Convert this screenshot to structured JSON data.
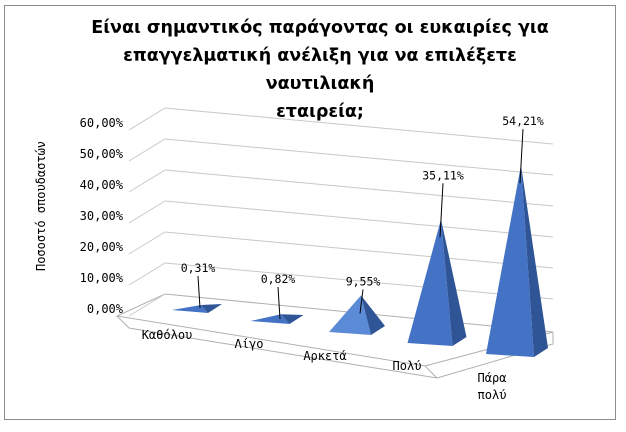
{
  "chart_data": {
    "type": "bar",
    "bar_style": "3d-pyramid",
    "title": "Είναι σημαντικός παράγοντας οι ευκαιρίες για επαγγελματική ανέλιξη για να επιλέξετε ναυτιλιακή εταιρεία;",
    "title_lines": [
      "Είναι σημαντικός παράγοντας οι ευκαιρίες για",
      "επαγγελματική ανέλιξη για να επιλέξετε ναυτιλιακή",
      "εταιρεία;"
    ],
    "ylabel": "Ποσοστό  σπουδαστών",
    "xlabel": "",
    "categories": [
      "Καθόλου",
      "Λίγο",
      "Αρκετά",
      "Πολύ",
      "Πάρα πολύ"
    ],
    "category_lines": [
      [
        "Καθόλου"
      ],
      [
        "Λίγο"
      ],
      [
        "Αρκετά"
      ],
      [
        "Πολύ"
      ],
      [
        "Πάρα",
        "πολύ"
      ]
    ],
    "values": [
      0.31,
      0.82,
      9.55,
      35.11,
      54.21
    ],
    "data_labels": [
      "0,31%",
      "0,82%",
      "9,55%",
      "35,11%",
      "54,21%"
    ],
    "yticks": [
      "0,00%",
      "10,00%",
      "20,00%",
      "30,00%",
      "40,00%",
      "50,00%",
      "60,00%"
    ],
    "ylim": [
      0,
      60
    ],
    "grid": true,
    "legend": "none",
    "colors": {
      "pyramid_front": "#4472c4",
      "pyramid_side": "#2f5597",
      "pyramid_light": "#5b8ad6",
      "gridline": "#c8c8c8",
      "floor": "#ffffff",
      "axis_text": "#000000"
    }
  }
}
